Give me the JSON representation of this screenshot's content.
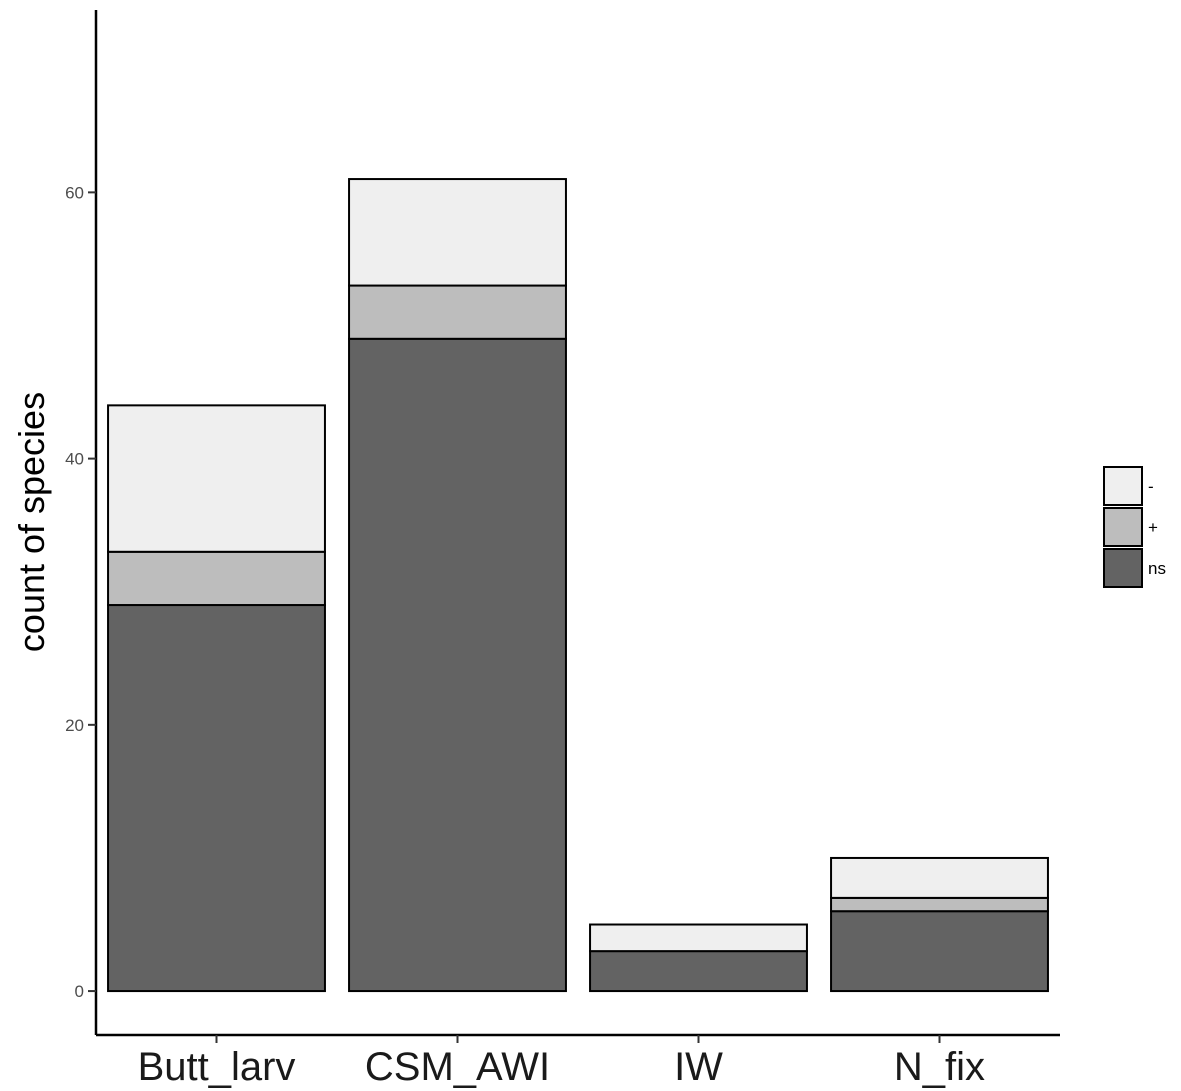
{
  "chart_data": {
    "type": "bar",
    "stacked": true,
    "categories": [
      "Butt_larv",
      "CSM_AWI",
      "IW",
      "N_fix"
    ],
    "series": [
      {
        "name": "ns",
        "values": [
          29,
          49,
          3,
          6
        ],
        "color": "#636363"
      },
      {
        "name": "+",
        "values": [
          4,
          4,
          0,
          1
        ],
        "color": "#bdbdbd"
      },
      {
        "name": "-",
        "values": [
          11,
          8,
          2,
          3
        ],
        "color": "#efefef"
      }
    ],
    "legend_order": [
      "-",
      "+",
      "ns"
    ],
    "xlabel": "",
    "ylabel": "count of species",
    "yticks": [
      0,
      20,
      40,
      60
    ],
    "ylim": [
      -3.3,
      73.7
    ],
    "grid": false,
    "legend_position": "right"
  }
}
